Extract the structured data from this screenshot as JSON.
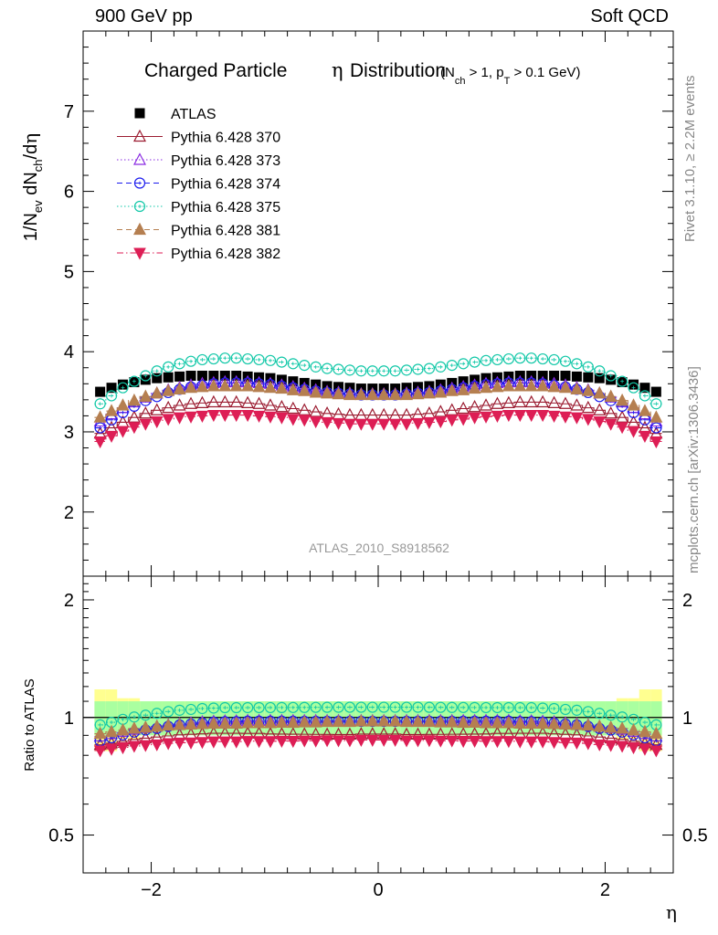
{
  "header": {
    "left": "900 GeV pp",
    "right": "Soft QCD"
  },
  "side_text": {
    "rivet": "Rivet 3.1.10, ≥ 2.2M events",
    "mcplots": "mcplots.cern.ch [arXiv:1306.3436]"
  },
  "chart_data": [
    {
      "type": "scatter",
      "panel": "main",
      "title": "Charged Particle η Distribution",
      "title_main": "Charged Particle",
      "title_eta": "η",
      "title_tail": "Distribution",
      "subtitle": "(N_ch > 1, p_T > 0.1 GeV)",
      "ylabel": "1/N_ev dN_ch/dη",
      "xlabel": "η",
      "analysis_label": "ATLAS_2010_S8918562",
      "xlim": [
        -2.6,
        2.6
      ],
      "ylim": [
        1.2,
        8.0
      ],
      "yticks": [
        2,
        3,
        4,
        5,
        6,
        7
      ],
      "xticks": [
        -2,
        0,
        2
      ],
      "legend_position": "top-left",
      "eta_bins": [
        -2.45,
        -2.35,
        -2.25,
        -2.15,
        -2.05,
        -1.95,
        -1.85,
        -1.75,
        -1.65,
        -1.55,
        -1.45,
        -1.35,
        -1.25,
        -1.15,
        -1.05,
        -0.95,
        -0.85,
        -0.75,
        -0.65,
        -0.55,
        -0.45,
        -0.35,
        -0.25,
        -0.15,
        -0.05,
        0.05,
        0.15,
        0.25,
        0.35,
        0.45,
        0.55,
        0.65,
        0.75,
        0.85,
        0.95,
        1.05,
        1.15,
        1.25,
        1.35,
        1.45,
        1.55,
        1.65,
        1.75,
        1.85,
        1.95,
        2.05,
        2.15,
        2.25,
        2.35,
        2.45
      ],
      "series": [
        {
          "name": "ATLAS",
          "color": "#000000",
          "marker": "square",
          "line": "none",
          "uncertainty_top": 0.03,
          "values": [
            3.5,
            3.55,
            3.59,
            3.62,
            3.65,
            3.67,
            3.68,
            3.69,
            3.7,
            3.7,
            3.7,
            3.7,
            3.7,
            3.69,
            3.68,
            3.67,
            3.65,
            3.63,
            3.61,
            3.59,
            3.57,
            3.56,
            3.55,
            3.54,
            3.54,
            3.54,
            3.54,
            3.55,
            3.56,
            3.57,
            3.59,
            3.61,
            3.63,
            3.65,
            3.67,
            3.68,
            3.69,
            3.7,
            3.7,
            3.7,
            3.7,
            3.7,
            3.69,
            3.68,
            3.67,
            3.65,
            3.62,
            3.59,
            3.55,
            3.5
          ]
        },
        {
          "name": "Pythia 6.428 370",
          "color": "#9b1b30",
          "marker": "triangle-up-open",
          "line": "solid",
          "values": [
            2.98,
            3.05,
            3.12,
            3.18,
            3.23,
            3.27,
            3.3,
            3.33,
            3.35,
            3.36,
            3.37,
            3.37,
            3.37,
            3.36,
            3.35,
            3.33,
            3.31,
            3.29,
            3.27,
            3.25,
            3.23,
            3.22,
            3.21,
            3.21,
            3.21,
            3.21,
            3.21,
            3.21,
            3.22,
            3.23,
            3.25,
            3.27,
            3.29,
            3.31,
            3.33,
            3.35,
            3.36,
            3.37,
            3.37,
            3.37,
            3.36,
            3.35,
            3.33,
            3.3,
            3.27,
            3.23,
            3.18,
            3.12,
            3.05,
            2.98
          ]
        },
        {
          "name": "Pythia 6.428 373",
          "color": "#8a2be2",
          "marker": "triangle-up-open",
          "line": "dotted",
          "values": [
            3.13,
            3.22,
            3.3,
            3.37,
            3.43,
            3.48,
            3.52,
            3.55,
            3.58,
            3.6,
            3.61,
            3.62,
            3.62,
            3.62,
            3.61,
            3.6,
            3.58,
            3.56,
            3.54,
            3.52,
            3.5,
            3.49,
            3.48,
            3.47,
            3.47,
            3.47,
            3.47,
            3.48,
            3.49,
            3.5,
            3.52,
            3.54,
            3.56,
            3.58,
            3.6,
            3.61,
            3.62,
            3.62,
            3.62,
            3.61,
            3.6,
            3.58,
            3.55,
            3.52,
            3.48,
            3.43,
            3.37,
            3.3,
            3.22,
            3.13
          ]
        },
        {
          "name": "Pythia 6.428 374",
          "color": "#1a1aee",
          "marker": "circle-open",
          "line": "dashed",
          "values": [
            3.05,
            3.15,
            3.24,
            3.32,
            3.39,
            3.44,
            3.49,
            3.53,
            3.56,
            3.58,
            3.6,
            3.61,
            3.61,
            3.61,
            3.6,
            3.59,
            3.57,
            3.55,
            3.53,
            3.51,
            3.49,
            3.48,
            3.47,
            3.46,
            3.46,
            3.46,
            3.46,
            3.47,
            3.48,
            3.49,
            3.51,
            3.53,
            3.55,
            3.57,
            3.59,
            3.6,
            3.61,
            3.61,
            3.61,
            3.6,
            3.58,
            3.56,
            3.53,
            3.49,
            3.44,
            3.39,
            3.32,
            3.24,
            3.15,
            3.05
          ]
        },
        {
          "name": "Pythia 6.428 375",
          "color": "#12c8a8",
          "marker": "circle-open",
          "line": "dotted",
          "values": [
            3.35,
            3.45,
            3.55,
            3.63,
            3.7,
            3.76,
            3.81,
            3.85,
            3.88,
            3.9,
            3.91,
            3.92,
            3.92,
            3.91,
            3.9,
            3.89,
            3.87,
            3.85,
            3.83,
            3.81,
            3.79,
            3.78,
            3.77,
            3.76,
            3.76,
            3.76,
            3.76,
            3.77,
            3.78,
            3.79,
            3.81,
            3.83,
            3.85,
            3.87,
            3.89,
            3.9,
            3.91,
            3.92,
            3.92,
            3.91,
            3.9,
            3.88,
            3.85,
            3.81,
            3.76,
            3.7,
            3.63,
            3.55,
            3.45,
            3.35
          ]
        },
        {
          "name": "Pythia 6.428 381",
          "color": "#b57f50",
          "marker": "triangle-up-filled",
          "line": "dashed",
          "values": [
            3.18,
            3.26,
            3.33,
            3.39,
            3.44,
            3.48,
            3.51,
            3.53,
            3.55,
            3.56,
            3.57,
            3.57,
            3.57,
            3.57,
            3.56,
            3.55,
            3.54,
            3.52,
            3.51,
            3.49,
            3.48,
            3.47,
            3.46,
            3.46,
            3.46,
            3.46,
            3.46,
            3.46,
            3.47,
            3.48,
            3.49,
            3.51,
            3.52,
            3.54,
            3.55,
            3.56,
            3.57,
            3.57,
            3.57,
            3.57,
            3.56,
            3.55,
            3.53,
            3.51,
            3.48,
            3.44,
            3.39,
            3.33,
            3.26,
            3.18
          ]
        },
        {
          "name": "Pythia 6.428 382",
          "color": "#dd1e55",
          "marker": "triangle-down-filled",
          "line": "dashdot",
          "values": [
            2.88,
            2.95,
            3.01,
            3.06,
            3.1,
            3.13,
            3.16,
            3.18,
            3.19,
            3.2,
            3.21,
            3.21,
            3.21,
            3.21,
            3.2,
            3.19,
            3.18,
            3.16,
            3.15,
            3.13,
            3.12,
            3.11,
            3.1,
            3.1,
            3.1,
            3.1,
            3.1,
            3.1,
            3.11,
            3.12,
            3.13,
            3.15,
            3.16,
            3.18,
            3.19,
            3.2,
            3.21,
            3.21,
            3.21,
            3.21,
            3.2,
            3.19,
            3.18,
            3.16,
            3.13,
            3.1,
            3.06,
            3.01,
            2.95,
            2.88
          ]
        }
      ]
    },
    {
      "type": "scatter",
      "panel": "ratio",
      "ylabel": "Ratio to ATLAS",
      "xlabel": "η",
      "xlim": [
        -2.6,
        2.6
      ],
      "ylim": [
        0.4,
        2.3
      ],
      "yticks": [
        0.5,
        1,
        2
      ],
      "ytick_labels": [
        "0.5",
        "1",
        "2"
      ],
      "xticks": [
        -2,
        0,
        2
      ],
      "xtick_labels": [
        "−2",
        "0",
        "2"
      ],
      "reference_line": 1.0,
      "band_stat_color": "#aaffa0",
      "band_total_color": "#ffff90",
      "band_stat_halfwidth": 0.1,
      "band_total_halfwidth": [
        0.18,
        0.18,
        0.12,
        0.12,
        0.1,
        0.1,
        0.1,
        0.1,
        0.1,
        0.1,
        0.1,
        0.1,
        0.1,
        0.1,
        0.1,
        0.1,
        0.1,
        0.1,
        0.1,
        0.1,
        0.1,
        0.1,
        0.1,
        0.1,
        0.1,
        0.1,
        0.1,
        0.1,
        0.1,
        0.1,
        0.1,
        0.1,
        0.1,
        0.1,
        0.1,
        0.1,
        0.1,
        0.1,
        0.1,
        0.1,
        0.1,
        0.1,
        0.1,
        0.1,
        0.1,
        0.1,
        0.12,
        0.12,
        0.18,
        0.18
      ],
      "series_ratio_note": "ratios = MC / ATLAS per bin"
    }
  ]
}
